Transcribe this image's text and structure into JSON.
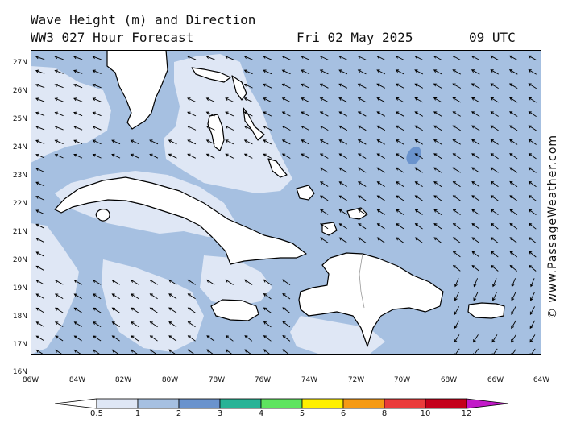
{
  "header": {
    "title": "Wave Height (m) and Direction",
    "model": "WW3 027 Hour Forecast",
    "date": "Fri 02 May 2025",
    "time": "09 UTC"
  },
  "credit": "© www.PassageWeather.com",
  "map": {
    "latitude_labels": [
      "27N",
      "26N",
      "25N",
      "24N",
      "23N",
      "22N",
      "21N",
      "20N",
      "19N",
      "18N",
      "17N",
      "16N"
    ],
    "longitude_labels": [
      "86W",
      "84W",
      "82W",
      "80W",
      "78W",
      "76W",
      "74W",
      "72W",
      "70W",
      "68W",
      "66W",
      "64W"
    ],
    "colors": {
      "sea_low": "#a6c0e1",
      "sea_calm": "#dfe7f5",
      "land": "#ffffff",
      "coast": "#000000"
    },
    "wave_direction": "from east (arrows point west / west-southwest)"
  },
  "colorbar": {
    "labels": [
      "0.5",
      "1",
      "2",
      "3",
      "4",
      "5",
      "6",
      "8",
      "10",
      "12"
    ],
    "colors": [
      "#dfe7f5",
      "#a6c0e1",
      "#6a93cd",
      "#27b396",
      "#5ee45f",
      "#fff000",
      "#f59a14",
      "#ea3b3b",
      "#c4001b",
      "#c218c8"
    ]
  }
}
